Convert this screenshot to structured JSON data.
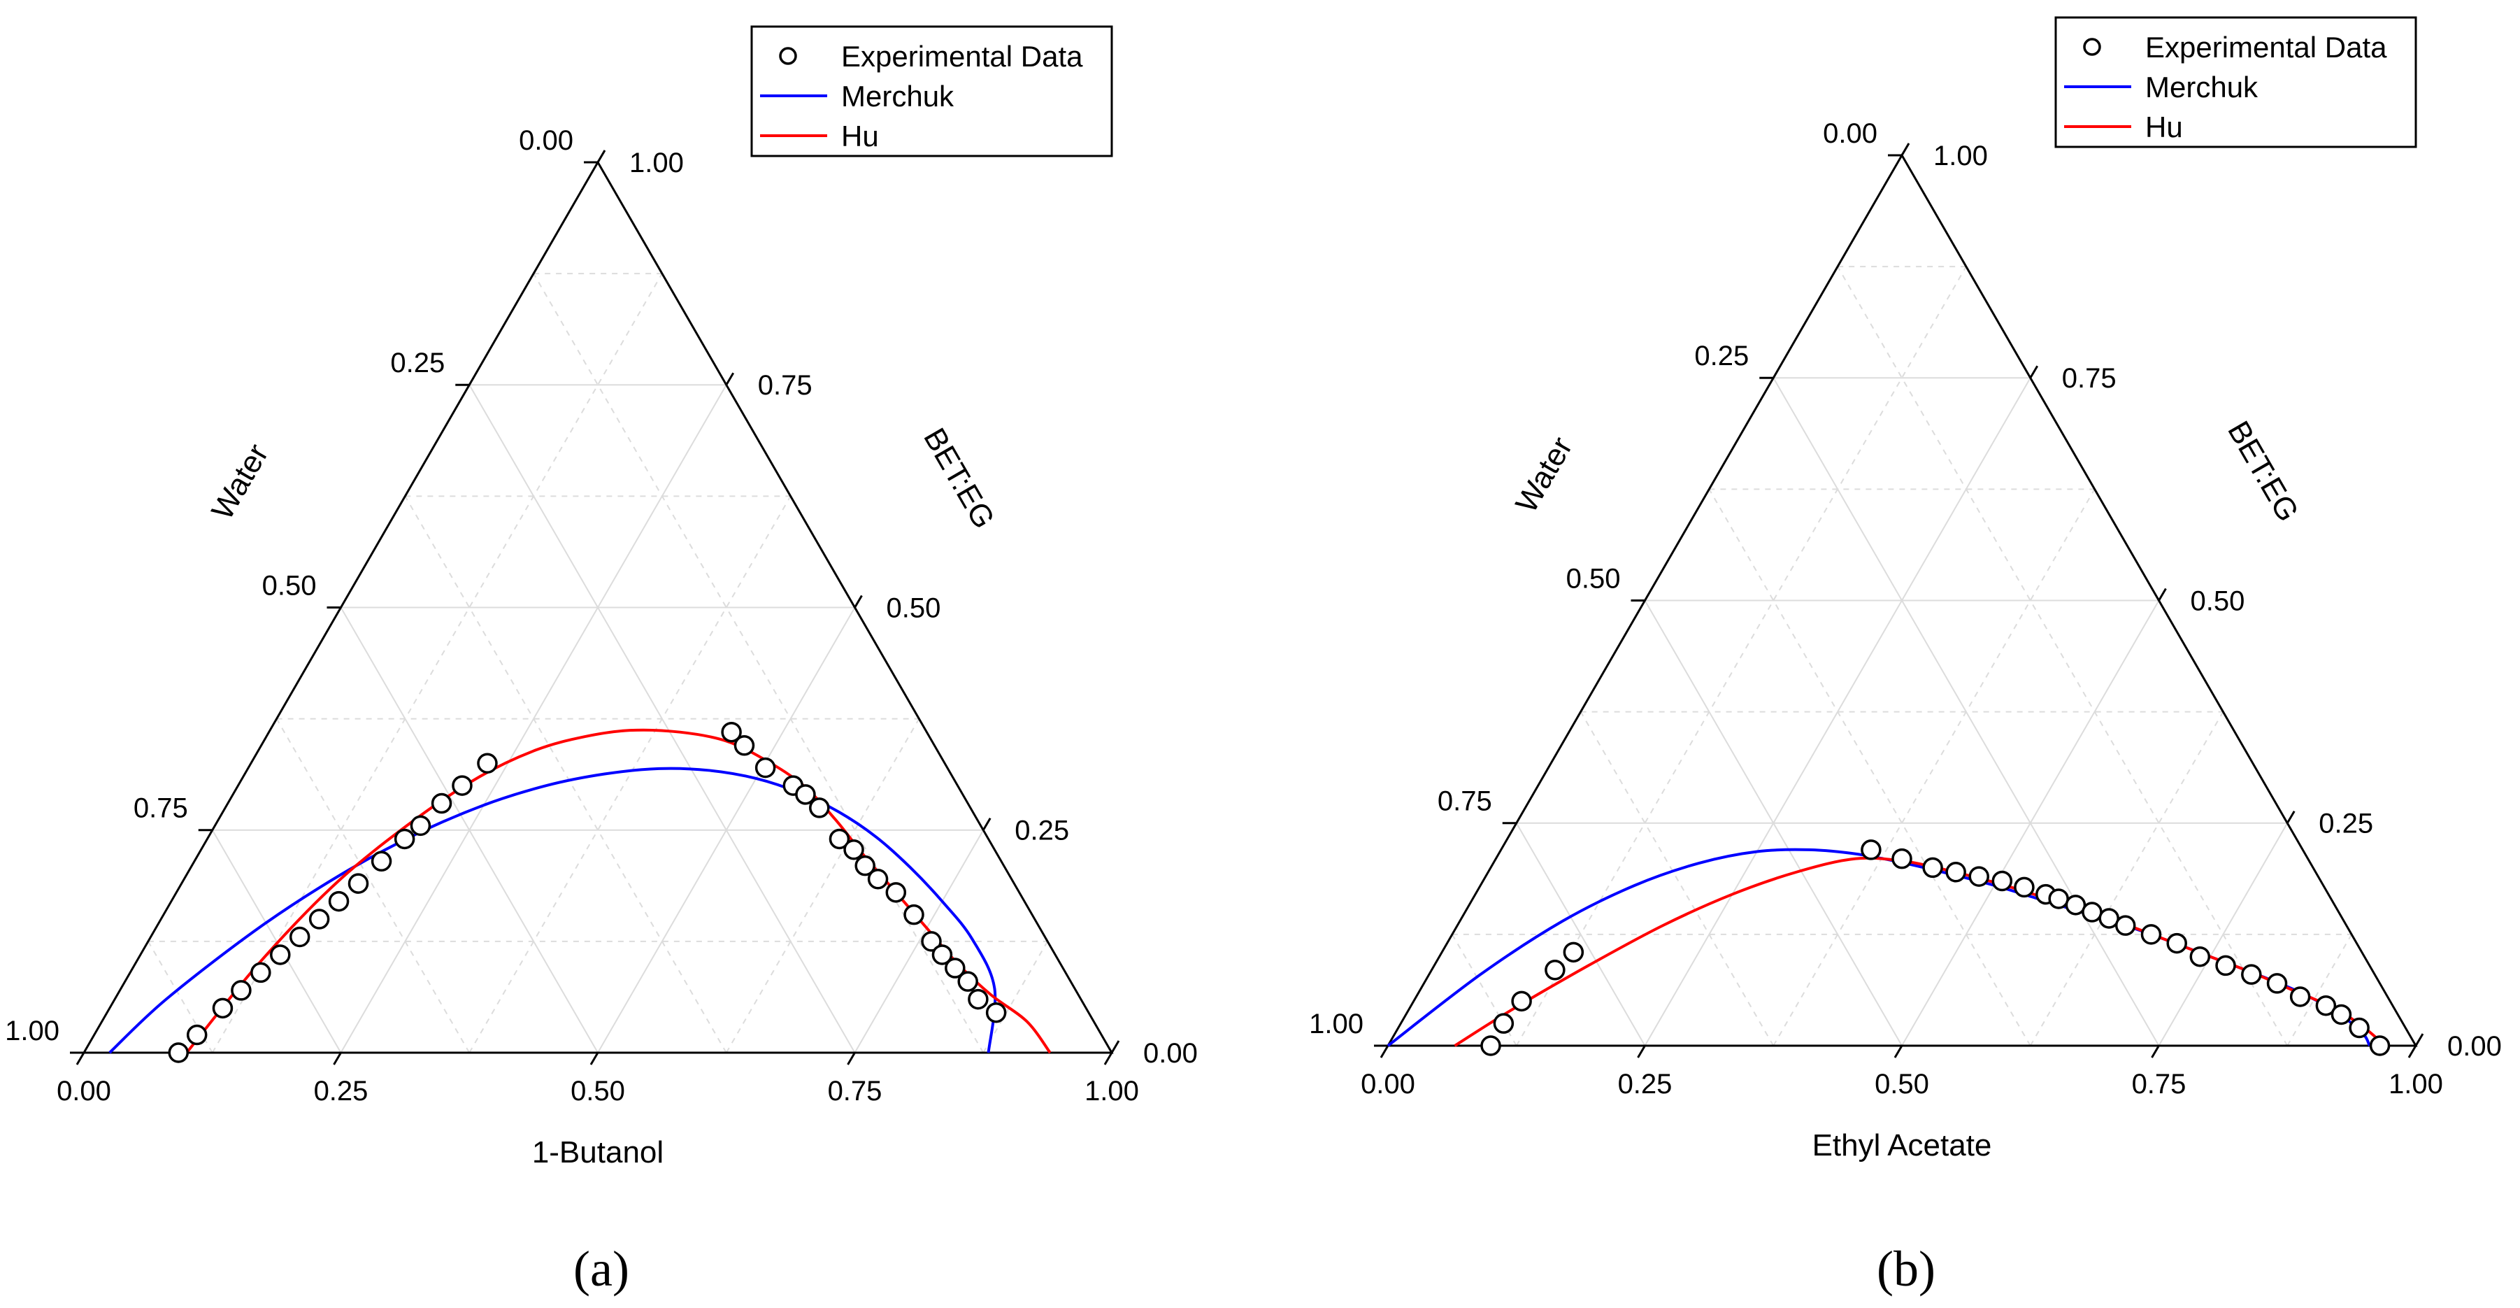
{
  "chart_data": [
    {
      "panel_label": "(a)",
      "type": "scatter",
      "axes": {
        "bottom_title": "1-Butanol",
        "left_title": "Water",
        "right_title": "BET:EG"
      },
      "ticks": {
        "bottom": [
          "0.00",
          "0.25",
          "0.50",
          "0.75",
          "1.00"
        ],
        "left": [
          "1.00",
          "0.75",
          "0.50",
          "0.25",
          "0.00"
        ],
        "right": [
          "0.00",
          "0.25",
          "0.50",
          "0.75",
          "1.00"
        ]
      },
      "grid": true,
      "legend": {
        "position": "top-right",
        "entries": [
          "Experimental Data",
          "Merchuk",
          "Hu"
        ]
      },
      "colors": {
        "experimental": "#000000",
        "merchuk": "#0000ff",
        "hu": "#ff0000"
      },
      "series": [
        {
          "name": "Experimental Data",
          "kind": "points",
          "points": [
            [
              0.092,
              0.0
            ],
            [
              0.1,
              0.02
            ],
            [
              0.11,
              0.05
            ],
            [
              0.118,
              0.07
            ],
            [
              0.127,
              0.09
            ],
            [
              0.136,
              0.11
            ],
            [
              0.145,
              0.13
            ],
            [
              0.154,
              0.15
            ],
            [
              0.163,
              0.17
            ],
            [
              0.172,
              0.19
            ],
            [
              0.182,
              0.215
            ],
            [
              0.192,
              0.24
            ],
            [
              0.2,
              0.255
            ],
            [
              0.208,
              0.28
            ],
            [
              0.218,
              0.3
            ],
            [
              0.23,
              0.325
            ],
            [
              0.45,
              0.36
            ],
            [
              0.47,
              0.345
            ],
            [
              0.503,
              0.32
            ],
            [
              0.54,
              0.3
            ],
            [
              0.557,
              0.29
            ],
            [
              0.578,
              0.275
            ],
            [
              0.615,
              0.24
            ],
            [
              0.635,
              0.228
            ],
            [
              0.655,
              0.21
            ],
            [
              0.675,
              0.195
            ],
            [
              0.7,
              0.18
            ],
            [
              0.73,
              0.155
            ],
            [
              0.762,
              0.125
            ],
            [
              0.78,
              0.11
            ],
            [
              0.8,
              0.095
            ],
            [
              0.82,
              0.08
            ],
            [
              0.84,
              0.06
            ],
            [
              0.865,
              0.045
            ]
          ]
        },
        {
          "name": "Merchuk",
          "kind": "line",
          "points": [
            [
              0.025,
              0.0
            ],
            [
              0.05,
              0.06
            ],
            [
              0.1,
              0.14
            ],
            [
              0.15,
              0.2
            ],
            [
              0.2,
              0.245
            ],
            [
              0.25,
              0.278
            ],
            [
              0.3,
              0.3
            ],
            [
              0.35,
              0.313
            ],
            [
              0.4,
              0.319
            ],
            [
              0.45,
              0.317
            ],
            [
              0.5,
              0.308
            ],
            [
              0.55,
              0.292
            ],
            [
              0.6,
              0.27
            ],
            [
              0.65,
              0.242
            ],
            [
              0.7,
              0.208
            ],
            [
              0.75,
              0.17
            ],
            [
              0.8,
              0.128
            ],
            [
              0.85,
              0.072
            ],
            [
              0.88,
              0.0
            ]
          ]
        },
        {
          "name": "Hu",
          "kind": "line",
          "points": [
            [
              0.1,
              0.0
            ],
            [
              0.12,
              0.1
            ],
            [
              0.15,
              0.19
            ],
            [
              0.19,
              0.26
            ],
            [
              0.23,
              0.31
            ],
            [
              0.27,
              0.34
            ],
            [
              0.31,
              0.355
            ],
            [
              0.35,
              0.362
            ],
            [
              0.4,
              0.36
            ],
            [
              0.45,
              0.35
            ],
            [
              0.5,
              0.328
            ],
            [
              0.55,
              0.3
            ],
            [
              0.6,
              0.262
            ],
            [
              0.65,
              0.22
            ],
            [
              0.7,
              0.18
            ],
            [
              0.75,
              0.14
            ],
            [
              0.8,
              0.1
            ],
            [
              0.85,
              0.065
            ],
            [
              0.9,
              0.035
            ],
            [
              0.94,
              0.0
            ]
          ]
        }
      ]
    },
    {
      "panel_label": "(b)",
      "type": "scatter",
      "axes": {
        "bottom_title": "Ethyl Acetate",
        "left_title": "Water",
        "right_title": "BET:EG"
      },
      "ticks": {
        "bottom": [
          "0.00",
          "0.25",
          "0.50",
          "0.75",
          "1.00"
        ],
        "left": [
          "1.00",
          "0.75",
          "0.50",
          "0.25",
          "0.00"
        ],
        "right": [
          "0.00",
          "0.25",
          "0.50",
          "0.75",
          "1.00"
        ]
      },
      "grid": true,
      "legend": {
        "position": "top-right",
        "entries": [
          "Experimental Data",
          "Merchuk",
          "Hu"
        ]
      },
      "colors": {
        "experimental": "#000000",
        "merchuk": "#0000ff",
        "hu": "#ff0000"
      },
      "series": [
        {
          "name": "Experimental Data",
          "kind": "points",
          "points": [
            [
              0.1,
              0.0
            ],
            [
              0.1,
              0.025
            ],
            [
              0.105,
              0.05
            ],
            [
              0.12,
              0.085
            ],
            [
              0.128,
              0.105
            ],
            [
              0.36,
              0.22
            ],
            [
              0.395,
              0.21
            ],
            [
              0.43,
              0.2
            ],
            [
              0.455,
              0.195
            ],
            [
              0.48,
              0.19
            ],
            [
              0.505,
              0.185
            ],
            [
              0.53,
              0.178
            ],
            [
              0.555,
              0.17
            ],
            [
              0.57,
              0.165
            ],
            [
              0.59,
              0.158
            ],
            [
              0.61,
              0.15
            ],
            [
              0.63,
              0.143
            ],
            [
              0.65,
              0.135
            ],
            [
              0.68,
              0.125
            ],
            [
              0.71,
              0.115
            ],
            [
              0.74,
              0.1
            ],
            [
              0.77,
              0.09
            ],
            [
              0.8,
              0.08
            ],
            [
              0.83,
              0.07
            ],
            [
              0.86,
              0.055
            ],
            [
              0.89,
              0.045
            ],
            [
              0.91,
              0.035
            ],
            [
              0.935,
              0.02
            ],
            [
              0.965,
              0.0
            ]
          ]
        },
        {
          "name": "Merchuk",
          "kind": "line",
          "points": [
            [
              0.0,
              0.0
            ],
            [
              0.05,
              0.08
            ],
            [
              0.1,
              0.14
            ],
            [
              0.15,
              0.18
            ],
            [
              0.2,
              0.205
            ],
            [
              0.25,
              0.218
            ],
            [
              0.3,
              0.22
            ],
            [
              0.35,
              0.215
            ],
            [
              0.4,
              0.205
            ],
            [
              0.45,
              0.193
            ],
            [
              0.5,
              0.18
            ],
            [
              0.55,
              0.165
            ],
            [
              0.6,
              0.15
            ],
            [
              0.65,
              0.135
            ],
            [
              0.7,
              0.118
            ],
            [
              0.75,
              0.1
            ],
            [
              0.8,
              0.082
            ],
            [
              0.85,
              0.063
            ],
            [
              0.9,
              0.04
            ],
            [
              0.94,
              0.015
            ],
            [
              0.955,
              0.0
            ]
          ]
        },
        {
          "name": "Hu",
          "kind": "line",
          "points": [
            [
              0.065,
              0.0
            ],
            [
              0.1,
              0.04
            ],
            [
              0.15,
              0.09
            ],
            [
              0.2,
              0.135
            ],
            [
              0.25,
              0.17
            ],
            [
              0.3,
              0.195
            ],
            [
              0.35,
              0.21
            ],
            [
              0.4,
              0.207
            ],
            [
              0.45,
              0.196
            ],
            [
              0.5,
              0.183
            ],
            [
              0.55,
              0.168
            ],
            [
              0.6,
              0.152
            ],
            [
              0.65,
              0.136
            ],
            [
              0.7,
              0.118
            ],
            [
              0.75,
              0.1
            ],
            [
              0.8,
              0.082
            ],
            [
              0.85,
              0.062
            ],
            [
              0.9,
              0.042
            ],
            [
              0.94,
              0.02
            ],
            [
              0.97,
              0.0
            ]
          ]
        }
      ]
    }
  ]
}
